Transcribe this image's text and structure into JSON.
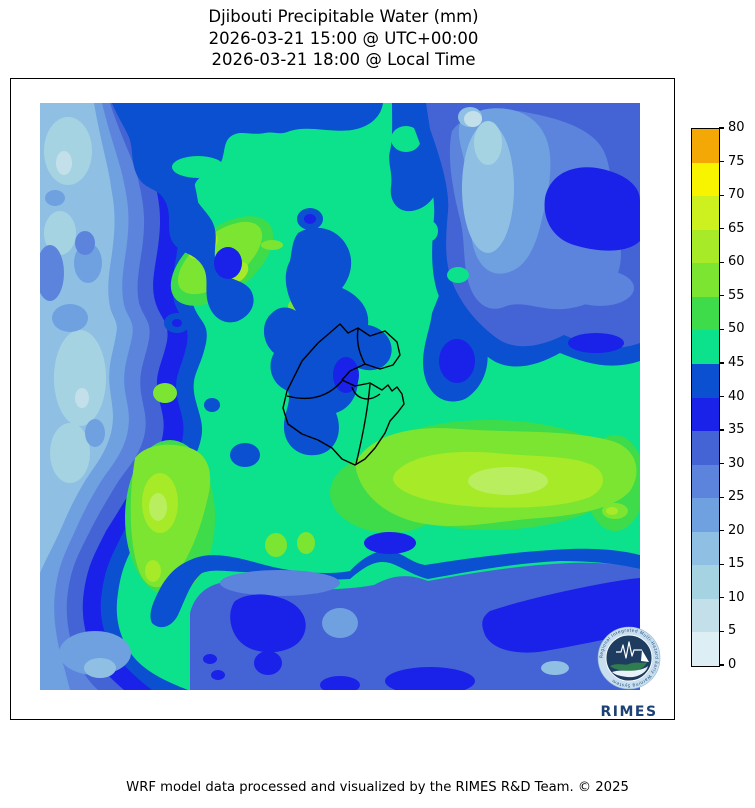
{
  "title": {
    "line1": "Djibouti Precipitable Water (mm)",
    "line2": "2026-03-21 15:00 @ UTC+00:00",
    "line3": "2026-03-21 18:00 @ Local Time"
  },
  "footer": {
    "credit": "WRF model data processed and visualized by the RIMES R&D Team. © 2025"
  },
  "colorbar": {
    "min": 0,
    "max": 80,
    "ticks": [
      0,
      5,
      10,
      15,
      20,
      25,
      30,
      35,
      40,
      45,
      50,
      55,
      60,
      65,
      70,
      75,
      80
    ],
    "levels": [
      {
        "range": "0-5",
        "color": "#ddeef5"
      },
      {
        "range": "5-10",
        "color": "#c3e0ea"
      },
      {
        "range": "10-15",
        "color": "#a6d3e2"
      },
      {
        "range": "15-20",
        "color": "#8fc0e4"
      },
      {
        "range": "20-25",
        "color": "#6fa0e0"
      },
      {
        "range": "25-30",
        "color": "#5c84dc"
      },
      {
        "range": "30-35",
        "color": "#4464d6"
      },
      {
        "range": "35-40",
        "color": "#1a21e8"
      },
      {
        "range": "40-45",
        "color": "#0a50d0"
      },
      {
        "range": "45-50",
        "color": "#0ce28b"
      },
      {
        "range": "50-55",
        "color": "#3edb4b"
      },
      {
        "range": "55-60",
        "color": "#7ce531"
      },
      {
        "range": "60-65",
        "color": "#a6ea28"
      },
      {
        "range": "65-70",
        "color": "#cdf01f"
      },
      {
        "range": "70-75",
        "color": "#f8f400"
      },
      {
        "range": "75-80",
        "color": "#f4a805"
      }
    ]
  },
  "map": {
    "country": "Djibouti",
    "border_color": "#000000",
    "extra_colors": {
      "band-core": "#b9ef5e"
    }
  },
  "logo": {
    "org": "RIMES",
    "ring_text": "Regional Integrated Multi-Hazard Early Warning System",
    "wordmark_color": "#1c4273"
  },
  "chart_data": {
    "type": "heatmap",
    "title": "Djibouti Precipitable Water (mm)",
    "unit": "mm",
    "valid_utc": "2026-03-21 15:00",
    "valid_local": "2026-03-21 18:00",
    "colorbar_range": [
      0,
      80
    ],
    "contour_interval": 5,
    "legend_position": "right",
    "field_regions": [
      {
        "area": "western edge band",
        "value_mm": "10-30"
      },
      {
        "area": "northwest transition band and top cap",
        "value_mm": "35-45"
      },
      {
        "area": "northeast quadrant low pocket",
        "value_mm": "15-35"
      },
      {
        "area": "central and eastern background",
        "value_mm": "45-50"
      },
      {
        "area": "east-central high band",
        "value_mm": "55-65"
      },
      {
        "area": "northwest high streak",
        "value_mm": "55-65"
      },
      {
        "area": "southwest wedge high",
        "value_mm": "55-65"
      },
      {
        "area": "Djibouti border area pocket",
        "value_mm": "35-45"
      },
      {
        "area": "southern band",
        "value_mm": "30-45"
      }
    ]
  }
}
